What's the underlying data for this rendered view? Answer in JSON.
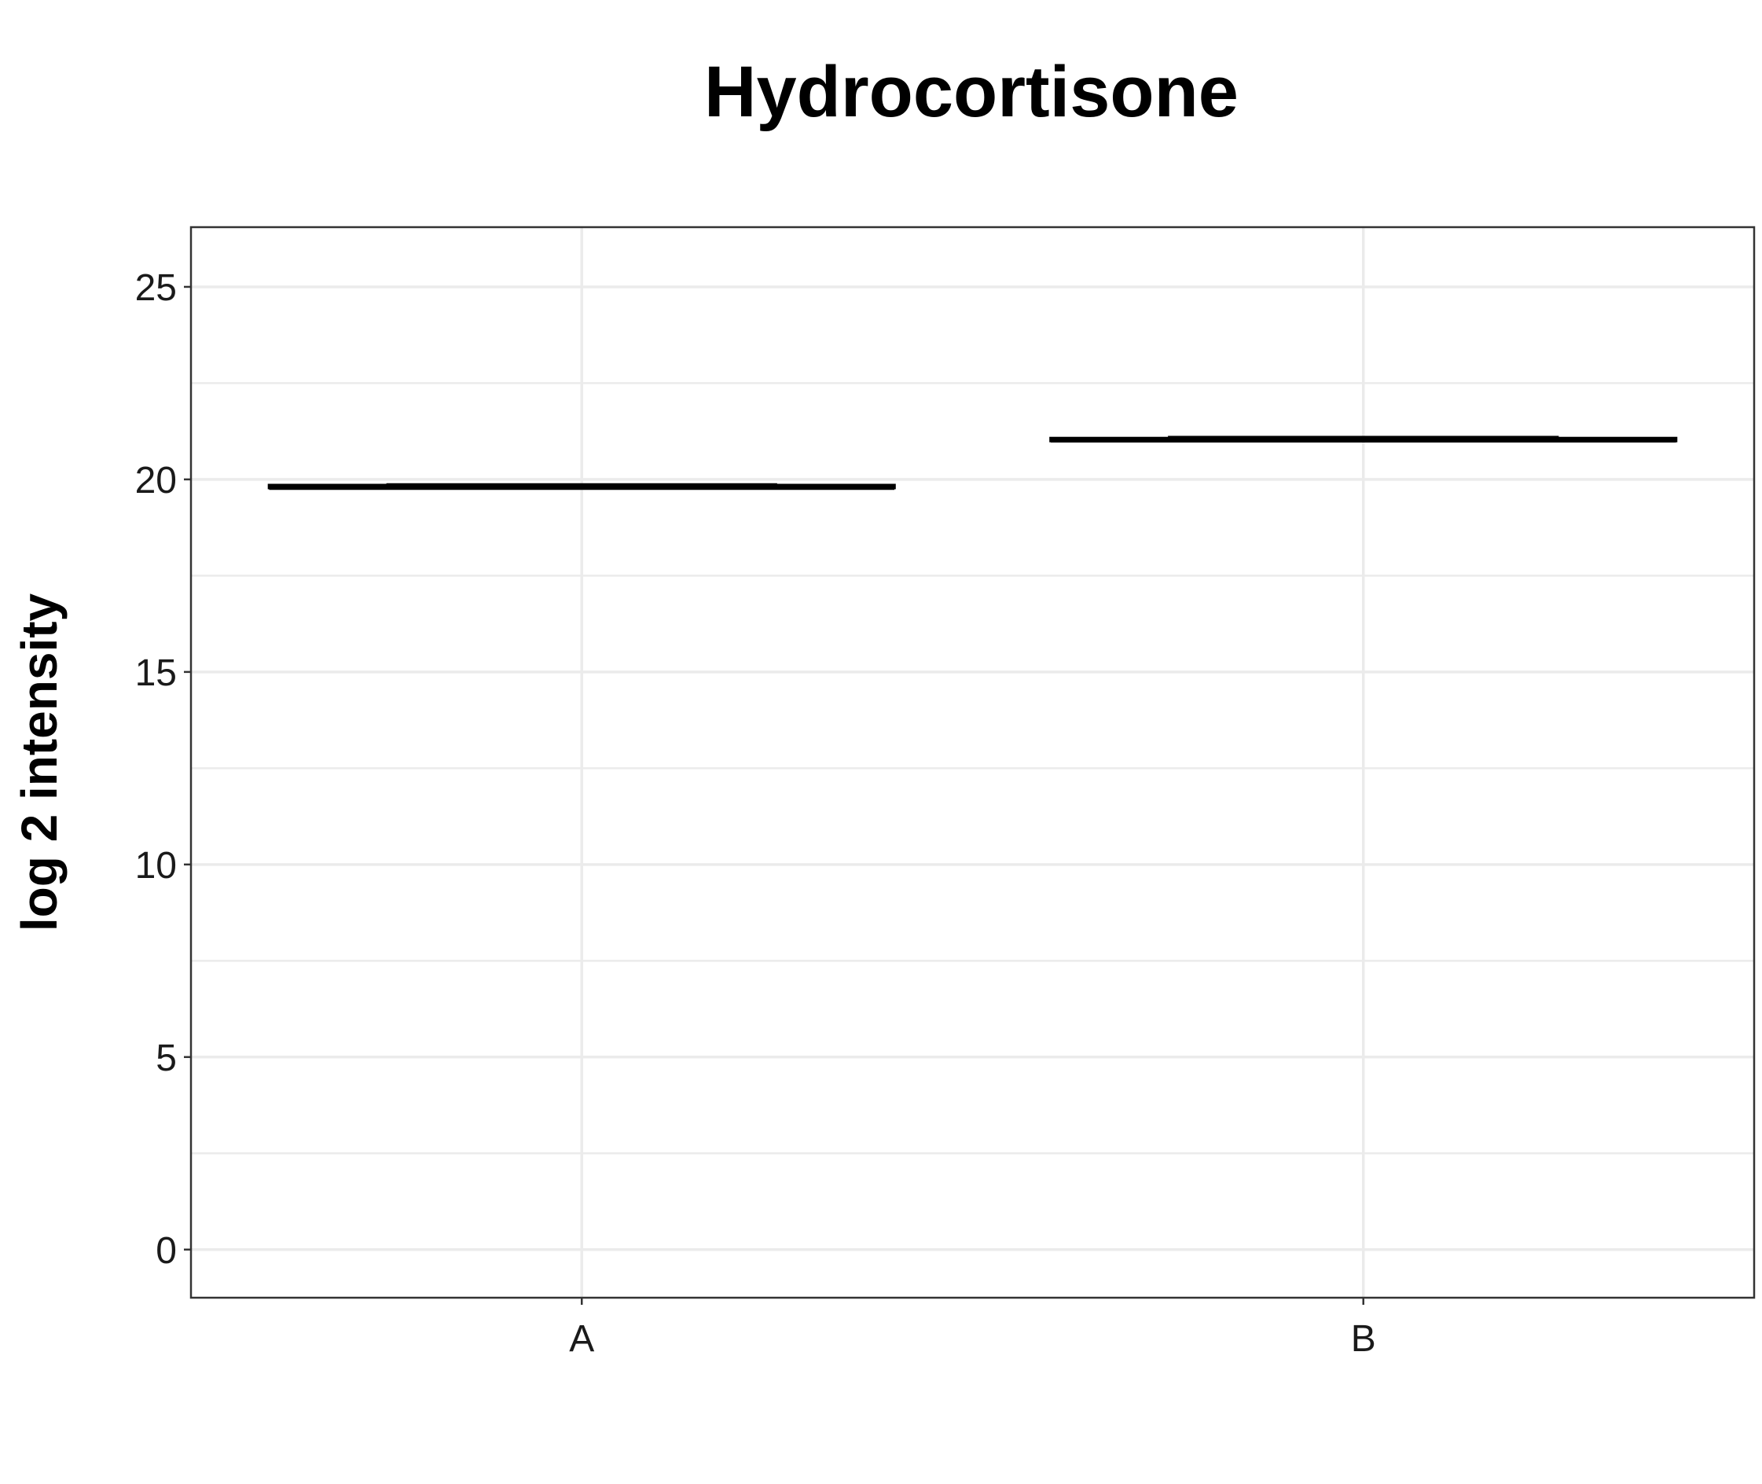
{
  "chart_data": {
    "type": "boxplot",
    "title": "Hydrocortisone",
    "xlabel": "",
    "ylabel": "log 2 intensity",
    "categories": [
      "A",
      "B"
    ],
    "boxes": [
      {
        "category": "A",
        "min": 19.75,
        "q1": 19.78,
        "median": 19.8,
        "q3": 19.85,
        "max": 19.85
      },
      {
        "category": "B",
        "min": 20.98,
        "q1": 21.0,
        "median": 21.03,
        "q3": 21.07,
        "max": 21.07
      }
    ],
    "ylim": [
      -1.25,
      26.55
    ],
    "yticks": [
      0,
      5,
      10,
      15,
      20,
      25
    ],
    "ytick_labels": [
      "0",
      "5",
      "10",
      "15",
      "20",
      "25"
    ],
    "grid": true,
    "legend": "none",
    "colors": {
      "box": "#000000",
      "grid": "#ebebeb",
      "panel_border": "#333333"
    }
  }
}
